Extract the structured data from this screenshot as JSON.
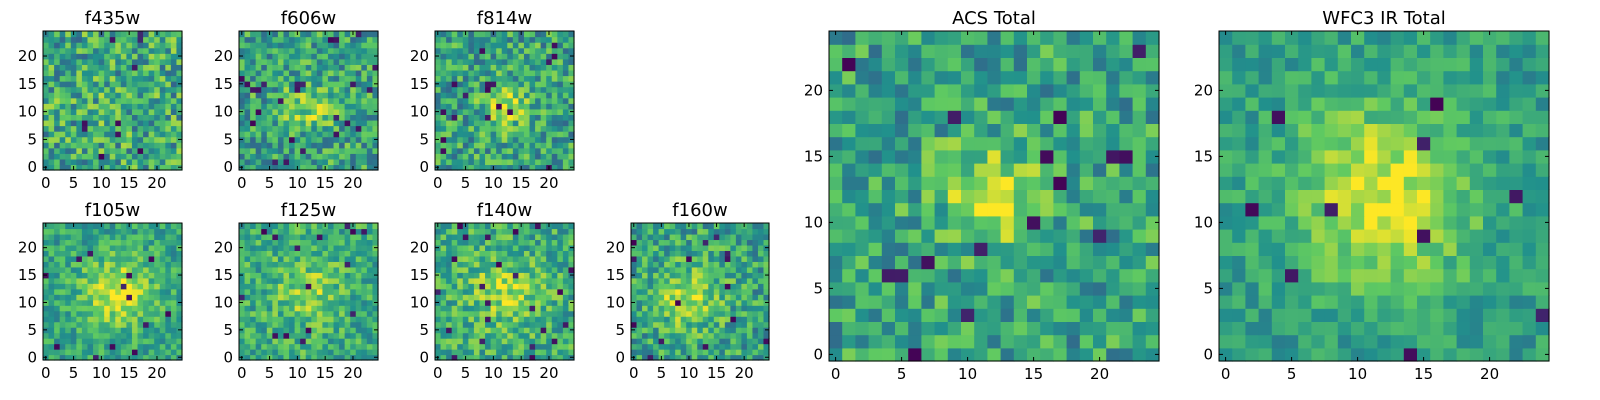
{
  "colormap": [
    "#440154",
    "#3b528b",
    "#21918c",
    "#5ec962",
    "#fde725"
  ],
  "chart_data": [
    {
      "type": "heatmap",
      "title": "f435w",
      "size": 25,
      "xticks": [
        0,
        5,
        10,
        15,
        20
      ],
      "yticks": [
        0,
        5,
        10,
        15,
        20
      ],
      "xlim": [
        0,
        24
      ],
      "ylim": [
        0,
        24
      ],
      "pattern": {
        "seed": 11,
        "center": [
          12,
          12
        ],
        "sigma": 3.0,
        "amp": 0.05,
        "base": 0.6,
        "noise": 0.55,
        "holes": 0.025
      }
    },
    {
      "type": "heatmap",
      "title": "f606w",
      "size": 25,
      "xticks": [
        0,
        5,
        10,
        15,
        20
      ],
      "yticks": [
        0,
        5,
        10,
        15,
        20
      ],
      "xlim": [
        0,
        24
      ],
      "ylim": [
        0,
        24
      ],
      "pattern": {
        "seed": 23,
        "center": [
          12,
          11
        ],
        "sigma": 3.0,
        "amp": 0.25,
        "base": 0.58,
        "noise": 0.5,
        "holes": 0.03
      }
    },
    {
      "type": "heatmap",
      "title": "f814w",
      "size": 25,
      "xticks": [
        0,
        5,
        10,
        15,
        20
      ],
      "yticks": [
        0,
        5,
        10,
        15,
        20
      ],
      "xlim": [
        0,
        24
      ],
      "ylim": [
        0,
        24
      ],
      "pattern": {
        "seed": 37,
        "center": [
          12,
          11
        ],
        "sigma": 2.5,
        "amp": 0.35,
        "base": 0.58,
        "noise": 0.5,
        "holes": 0.03
      }
    },
    {
      "type": "heatmap",
      "title": "f105w",
      "size": 25,
      "xticks": [
        0,
        5,
        10,
        15,
        20
      ],
      "yticks": [
        0,
        5,
        10,
        15,
        20
      ],
      "xlim": [
        0,
        24
      ],
      "ylim": [
        0,
        24
      ],
      "pattern": {
        "seed": 41,
        "center": [
          13,
          12
        ],
        "sigma": 4.5,
        "amp": 0.35,
        "base": 0.58,
        "noise": 0.35,
        "holes": 0.02
      }
    },
    {
      "type": "heatmap",
      "title": "f125w",
      "size": 25,
      "xticks": [
        0,
        5,
        10,
        15,
        20
      ],
      "yticks": [
        0,
        5,
        10,
        15,
        20
      ],
      "xlim": [
        0,
        24
      ],
      "ylim": [
        0,
        24
      ],
      "pattern": {
        "seed": 53,
        "center": [
          12,
          12
        ],
        "sigma": 4.0,
        "amp": 0.2,
        "base": 0.62,
        "noise": 0.4,
        "holes": 0.03
      }
    },
    {
      "type": "heatmap",
      "title": "f140w",
      "size": 25,
      "xticks": [
        0,
        5,
        10,
        15,
        20
      ],
      "yticks": [
        0,
        5,
        10,
        15,
        20
      ],
      "xlim": [
        0,
        24
      ],
      "ylim": [
        0,
        24
      ],
      "pattern": {
        "seed": 67,
        "center": [
          12,
          12
        ],
        "sigma": 4.5,
        "amp": 0.22,
        "base": 0.62,
        "noise": 0.42,
        "holes": 0.03
      }
    },
    {
      "type": "heatmap",
      "title": "f160w",
      "size": 25,
      "xticks": [
        0,
        5,
        10,
        15,
        20
      ],
      "yticks": [
        0,
        5,
        10,
        15,
        20
      ],
      "xlim": [
        0,
        24
      ],
      "ylim": [
        0,
        24
      ],
      "pattern": {
        "seed": 79,
        "center": [
          10,
          11
        ],
        "sigma": 4.0,
        "amp": 0.3,
        "base": 0.58,
        "noise": 0.45,
        "holes": 0.03
      }
    },
    {
      "type": "heatmap",
      "title": "ACS Total",
      "size": 25,
      "xticks": [
        0,
        5,
        10,
        15,
        20
      ],
      "yticks": [
        0,
        5,
        10,
        15,
        20
      ],
      "xlim": [
        0,
        24
      ],
      "ylim": [
        0,
        24
      ],
      "pattern": {
        "seed": 101,
        "center": [
          12,
          12
        ],
        "sigma": 2.8,
        "amp": 0.35,
        "base": 0.58,
        "noise": 0.45,
        "holes": 0.025
      }
    },
    {
      "type": "heatmap",
      "title": "WFC3 IR Total",
      "size": 25,
      "xticks": [
        0,
        5,
        10,
        15,
        20
      ],
      "yticks": [
        0,
        5,
        10,
        15,
        20
      ],
      "xlim": [
        0,
        24
      ],
      "ylim": [
        0,
        24
      ],
      "pattern": {
        "seed": 131,
        "center": [
          12,
          12
        ],
        "sigma": 5.0,
        "amp": 0.4,
        "base": 0.55,
        "noise": 0.28,
        "holes": 0.02
      }
    }
  ]
}
